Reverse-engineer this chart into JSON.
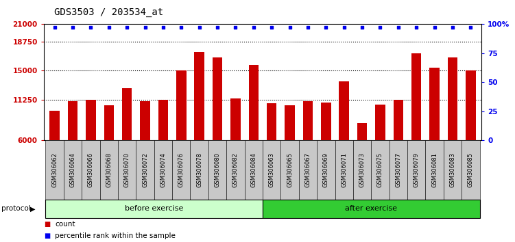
{
  "title": "GDS3503 / 203534_at",
  "categories": [
    "GSM306062",
    "GSM306064",
    "GSM306066",
    "GSM306068",
    "GSM306070",
    "GSM306072",
    "GSM306074",
    "GSM306076",
    "GSM306078",
    "GSM306080",
    "GSM306082",
    "GSM306084",
    "GSM306063",
    "GSM306065",
    "GSM306067",
    "GSM306069",
    "GSM306071",
    "GSM306073",
    "GSM306075",
    "GSM306077",
    "GSM306079",
    "GSM306081",
    "GSM306083",
    "GSM306085"
  ],
  "bar_values": [
    9800,
    11100,
    11200,
    10500,
    12700,
    11050,
    11200,
    15000,
    17400,
    16700,
    11400,
    15700,
    10800,
    10550,
    11100,
    10900,
    13600,
    8200,
    10600,
    11200,
    17200,
    15400,
    16700,
    15000
  ],
  "percentile_values": [
    97,
    97,
    97,
    97,
    97,
    97,
    97,
    97,
    97,
    97,
    97,
    97,
    97,
    97,
    97,
    97,
    97,
    97,
    97,
    97,
    97,
    97,
    97,
    97
  ],
  "bar_color": "#cc0000",
  "percentile_color": "#0000ee",
  "ylim_left": [
    6000,
    21000
  ],
  "ylim_right": [
    0,
    100
  ],
  "yticks_left": [
    6000,
    11250,
    15000,
    18750,
    21000
  ],
  "yticks_right": [
    0,
    25,
    50,
    75,
    100
  ],
  "ytick_labels_left": [
    "6000",
    "11250",
    "15000",
    "18750",
    "21000"
  ],
  "ytick_labels_right": [
    "0",
    "25",
    "50",
    "75",
    "100%"
  ],
  "group1_label": "before exercise",
  "group2_label": "after exercise",
  "group1_count": 12,
  "group2_count": 12,
  "protocol_label": "protocol",
  "legend_bar_label": "count",
  "legend_dot_label": "percentile rank within the sample",
  "group1_bg": "#ccffcc",
  "group2_bg": "#33cc33",
  "category_bg": "#c8c8c8",
  "title_fontsize": 10,
  "tick_fontsize": 7.5,
  "cat_fontsize": 6,
  "label_fontsize": 8
}
